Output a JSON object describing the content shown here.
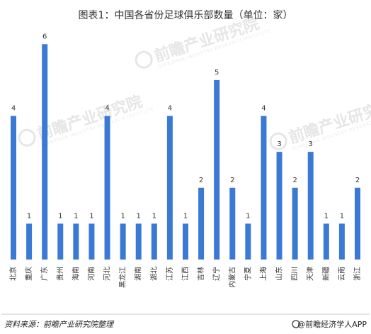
{
  "chart_data": {
    "type": "bar",
    "title": "图表1：中国各省份足球俱乐部数量（单位：家）",
    "xlabel": "",
    "ylabel": "",
    "ylim": [
      0,
      6.4
    ],
    "grid": false,
    "legend": "none",
    "bar_color": "#3a7ad5",
    "categories": [
      "北京",
      "重庆",
      "广东",
      "贵州",
      "海南",
      "河南",
      "河北",
      "黑龙江",
      "湖南",
      "湖北",
      "江苏",
      "江西",
      "吉林",
      "辽宁",
      "内蒙古",
      "宁夏",
      "上海",
      "山东",
      "四川",
      "天津",
      "新疆",
      "云南",
      "浙江"
    ],
    "values": [
      4,
      1,
      6,
      1,
      1,
      1,
      4,
      1,
      1,
      1,
      4,
      1,
      2,
      5,
      2,
      1,
      4,
      3,
      2,
      3,
      1,
      1,
      2
    ]
  },
  "footer": {
    "source": "资料来源：前瞻产业研究院整理",
    "brand": "@前瞻经济学人APP"
  },
  "watermark": {
    "text": "前瞻产业研究院",
    "sub": "QIANZHAN INDUSTRY RESEARCH INSTITUTE"
  }
}
